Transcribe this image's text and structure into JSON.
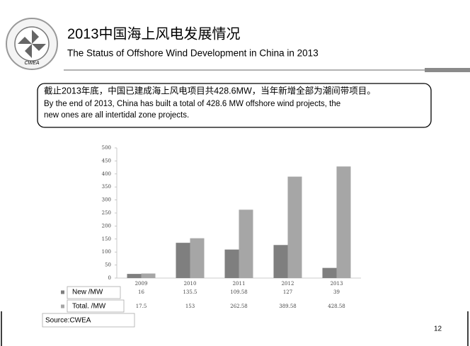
{
  "header": {
    "title": "2013中国海上风电发展情况",
    "subtitle": "The Status of Offshore Wind Development in China in 2013",
    "logo_text": "CWEA"
  },
  "callout": {
    "lines": [
      "截止2013年底，中国已建成海上风电项目共428.6MW，当年新增全部为潮间带项目。",
      "By the end of 2013, China has built a total of 428.6 MW offshore wind projects, the",
      "new ones are all intertidal zone projects."
    ]
  },
  "chart_data": {
    "type": "bar",
    "categories": [
      "2009",
      "2010",
      "2011",
      "2012",
      "2013"
    ],
    "series": [
      {
        "name": "New /MW",
        "color": "#7f7f7f",
        "values": [
          16,
          135.5,
          109.58,
          127,
          39
        ]
      },
      {
        "name": "Total. /MW",
        "color": "#a6a6a6",
        "values": [
          17.5,
          153,
          262.58,
          389.58,
          428.58
        ]
      }
    ],
    "ylim": [
      0,
      500
    ],
    "yticks": [
      0,
      50,
      100,
      150,
      200,
      250,
      300,
      350,
      400,
      450,
      500
    ],
    "data_table": true
  },
  "source": "Source:CWEA",
  "page_number": "12"
}
